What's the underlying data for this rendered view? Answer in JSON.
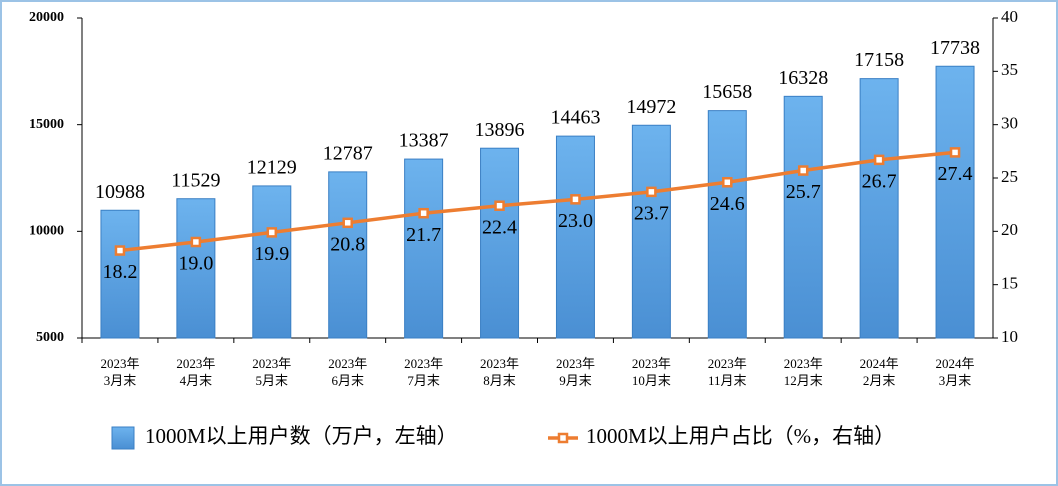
{
  "chart_data": {
    "type": "bar_line",
    "categories": [
      [
        "2023年",
        "3月末"
      ],
      [
        "2023年",
        "4月末"
      ],
      [
        "2023年",
        "5月末"
      ],
      [
        "2023年",
        "6月末"
      ],
      [
        "2023年",
        "7月末"
      ],
      [
        "2023年",
        "8月末"
      ],
      [
        "2023年",
        "9月末"
      ],
      [
        "2023年",
        "10月末"
      ],
      [
        "2023年",
        "11月末"
      ],
      [
        "2023年",
        "12月末"
      ],
      [
        "2024年",
        "2月末"
      ],
      [
        "2024年",
        "3月末"
      ]
    ],
    "series": [
      {
        "name": "1000M以上用户数（万户，左轴）",
        "type": "bar",
        "color": "#5ba3e6",
        "axis": "y",
        "values": [
          10988,
          11529,
          12129,
          12787,
          13387,
          13896,
          14463,
          14972,
          15658,
          16328,
          17158,
          17738
        ]
      },
      {
        "name": "1000M以上用户占比（%，右轴）",
        "type": "line",
        "color": "#ed7d31",
        "axis": "y2",
        "values": [
          18.2,
          19.0,
          19.9,
          20.8,
          21.7,
          22.4,
          23.0,
          23.7,
          24.6,
          25.7,
          26.7,
          27.4
        ],
        "value_labels": [
          "18.2",
          "19.0",
          "19.9",
          "20.8",
          "21.7",
          "22.4",
          "23.0",
          "23.7",
          "24.6",
          "25.7",
          "26.7",
          "27.4"
        ]
      }
    ],
    "ylim": [
      5000,
      20000
    ],
    "yticks": [
      5000,
      10000,
      15000,
      20000
    ],
    "y2lim": [
      10,
      40
    ],
    "y2ticks": [
      10,
      15,
      20,
      25,
      30,
      35,
      40
    ],
    "grid": false
  }
}
